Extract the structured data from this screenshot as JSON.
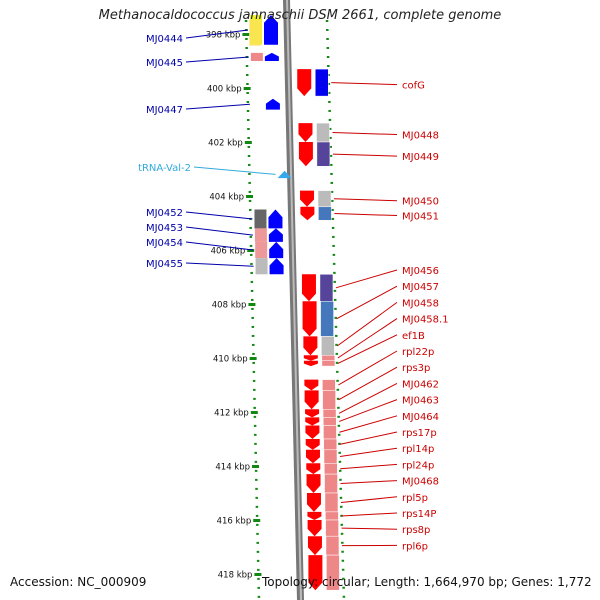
{
  "title": "Methanocaldococcus jannaschii DSM 2661, complete genome",
  "footer": {
    "accession": "Accession: NC_000909",
    "topology": "Topology: circular; Length: 1,664,970 bp; Genes: 1,772"
  },
  "axis": {
    "unit": "kbp",
    "range_kbp": [
      397.3,
      418.6
    ],
    "ticks": [
      "398 kbp",
      "400 kbp",
      "402 kbp",
      "404 kbp",
      "406 kbp",
      "408 kbp",
      "410 kbp",
      "412 kbp",
      "414 kbp",
      "416 kbp",
      "418 kbp"
    ]
  },
  "colors": {
    "reverse_label": "#0000aa",
    "forward_label": "#cc0000",
    "trna_label": "#33aadd",
    "reverse_gene": "#0000ff",
    "forward_gene": "#ff0000",
    "trna": "#33aaee",
    "tick": "#118811",
    "backbone": "#777777"
  },
  "reverse_genes": [
    {
      "name": "MJ0444",
      "start": 397.3,
      "end": 398.4,
      "shade": "#f0f030"
    },
    {
      "name": "MJ0445",
      "start": 398.7,
      "end": 399.0,
      "shade": "#ee8888"
    },
    {
      "name": "MJ0447",
      "start": 400.4,
      "end": 400.8,
      "shade": ""
    },
    {
      "name": "MJ0452",
      "start": 404.5,
      "end": 405.2,
      "shade": "#666666"
    },
    {
      "name": "MJ0453",
      "start": 405.2,
      "end": 405.7,
      "shade": "#ee9999"
    },
    {
      "name": "MJ0454",
      "start": 405.7,
      "end": 406.3,
      "shade": "#ee9999"
    },
    {
      "name": "MJ0455",
      "start": 406.3,
      "end": 406.9,
      "shade": "#bbbbbb"
    }
  ],
  "trna_genes": [
    {
      "name": "tRNA-Val-2",
      "start": 403.1,
      "end": 403.3
    }
  ],
  "forward_genes": [
    {
      "name": "cofG",
      "start": 399.3,
      "end": 400.3,
      "shade": "#0000ee"
    },
    {
      "name": "MJ0448",
      "start": 401.3,
      "end": 402.0,
      "shade": "#bbbbbb"
    },
    {
      "name": "MJ0449",
      "start": 402.0,
      "end": 402.9,
      "shade": "#554499"
    },
    {
      "name": "MJ0450",
      "start": 403.8,
      "end": 404.4,
      "shade": "#bbbbbb"
    },
    {
      "name": "MJ0451",
      "start": 404.4,
      "end": 404.9,
      "shade": "#4477bb"
    },
    {
      "name": "MJ0456",
      "start": 406.9,
      "end": 407.9,
      "shade": "#554499"
    },
    {
      "name": "MJ0457",
      "start": 407.9,
      "end": 409.2,
      "shade": "#4477bb"
    },
    {
      "name": "MJ0458",
      "start": 409.2,
      "end": 409.9,
      "shade": "#bbbbbb"
    },
    {
      "name": "MJ0458.1",
      "start": 409.9,
      "end": 410.1,
      "shade": "#ee8888"
    },
    {
      "name": "ef1B",
      "start": 410.1,
      "end": 410.3,
      "shade": "#ee8888"
    },
    {
      "name": "rpl22p",
      "start": 410.8,
      "end": 411.2,
      "shade": "#ee8888"
    },
    {
      "name": "rps3p",
      "start": 411.2,
      "end": 411.9,
      "shade": "#ee8888"
    },
    {
      "name": "MJ0462",
      "start": 411.9,
      "end": 412.2,
      "shade": "#ee8888"
    },
    {
      "name": "MJ0463",
      "start": 412.2,
      "end": 412.5,
      "shade": "#ee8888"
    },
    {
      "name": "MJ0464",
      "start": 412.5,
      "end": 413.0,
      "shade": "#ee8888"
    },
    {
      "name": "rps17p",
      "start": 413.0,
      "end": 413.4,
      "shade": "#ee8888"
    },
    {
      "name": "rpl14p",
      "start": 413.4,
      "end": 413.9,
      "shade": "#ee8888"
    },
    {
      "name": "rpl24p",
      "start": 413.9,
      "end": 414.3,
      "shade": "#ee8888"
    },
    {
      "name": "MJ0468",
      "start": 414.3,
      "end": 415.0,
      "shade": "#ee8888"
    },
    {
      "name": "rpl5p",
      "start": 415.0,
      "end": 415.7,
      "shade": "#ee8888"
    },
    {
      "name": "rps14P",
      "start": 415.7,
      "end": 416.0,
      "shade": "#ee8888"
    },
    {
      "name": "rps8p",
      "start": 416.0,
      "end": 416.6,
      "shade": "#ee8888"
    },
    {
      "name": "rpl6p",
      "start": 416.6,
      "end": 417.3,
      "shade": "#ee8888"
    },
    {
      "name": "",
      "start": 417.3,
      "end": 418.6,
      "shade": "#ee8888"
    }
  ]
}
